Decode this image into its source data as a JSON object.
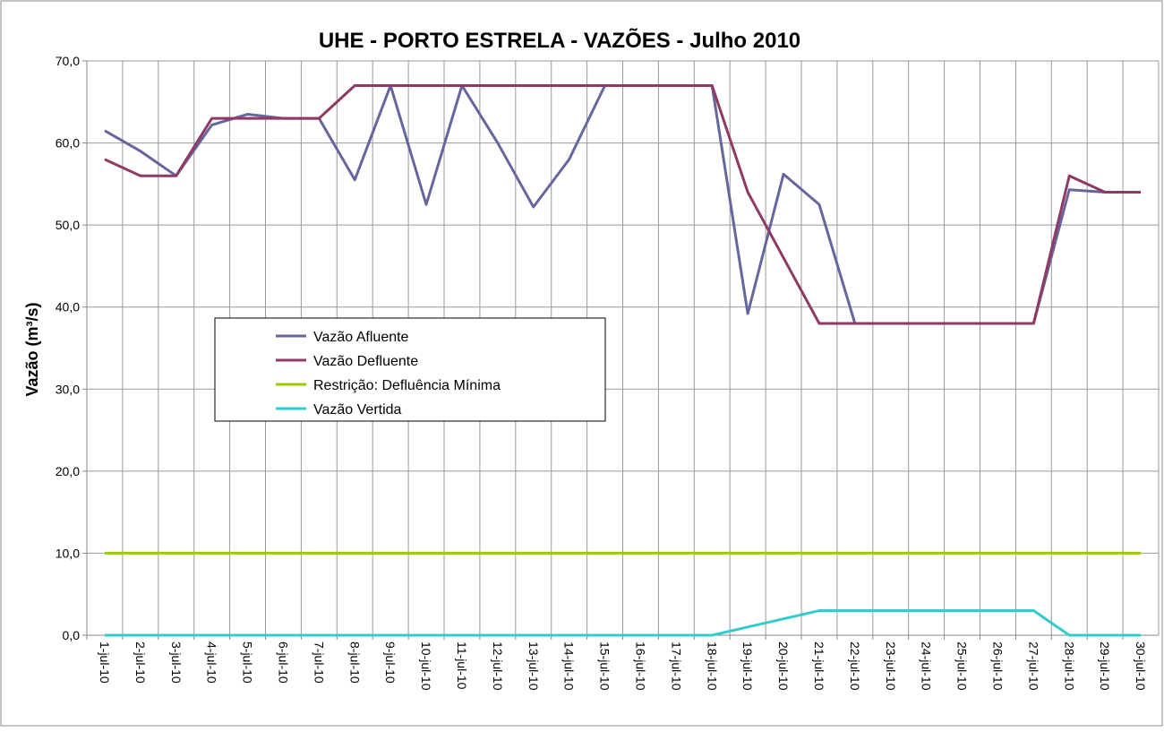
{
  "chart_data": {
    "type": "line",
    "title": "UHE - PORTO ESTRELA - VAZÕES - Julho 2010",
    "y_label": "Vazão (m³/s)",
    "categories": [
      "1-jul-10",
      "2-jul-10",
      "3-jul-10",
      "4-jul-10",
      "5-jul-10",
      "6-jul-10",
      "7-jul-10",
      "8-jul-10",
      "9-jul-10",
      "10-jul-10",
      "11-jul-10",
      "12-jul-10",
      "13-jul-10",
      "14-jul-10",
      "15-jul-10",
      "16-jul-10",
      "17-jul-10",
      "18-jul-10",
      "19-jul-10",
      "20-jul-10",
      "21-jul-10",
      "22-jul-10",
      "23-jul-10",
      "24-jul-10",
      "25-jul-10",
      "26-jul-10",
      "27-jul-10",
      "28-jul-10",
      "29-jul-10",
      "30-jul-10"
    ],
    "series": [
      {
        "name": "Vazão Afluente",
        "color": "#66669e",
        "values": [
          61.5,
          59,
          56,
          62.2,
          63.5,
          63,
          63,
          55.5,
          67,
          52.5,
          67,
          60,
          52.2,
          58,
          67,
          67,
          67,
          67,
          39.2,
          56.2,
          52.5,
          38,
          38,
          38,
          38,
          38,
          38,
          54.3,
          54,
          54
        ]
      },
      {
        "name": "Vazão Defluente",
        "color": "#8e3a64",
        "values": [
          58,
          56,
          56,
          63,
          63,
          63,
          63,
          67,
          67,
          67,
          67,
          67,
          67,
          67,
          67,
          67,
          67,
          67,
          54,
          46,
          38,
          38,
          38,
          38,
          38,
          38,
          38,
          56,
          54,
          54
        ]
      },
      {
        "name": "Restrição: Defluência Mínima",
        "color": "#99cc00",
        "values": [
          10,
          10,
          10,
          10,
          10,
          10,
          10,
          10,
          10,
          10,
          10,
          10,
          10,
          10,
          10,
          10,
          10,
          10,
          10,
          10,
          10,
          10,
          10,
          10,
          10,
          10,
          10,
          10,
          10,
          10
        ]
      },
      {
        "name": "Vazão Vertida",
        "color": "#33cccc",
        "values": [
          0,
          0,
          0,
          0,
          0,
          0,
          0,
          0,
          0,
          0,
          0,
          0,
          0,
          0,
          0,
          0,
          0,
          0,
          1,
          2,
          3,
          3,
          3,
          3,
          3,
          3,
          3,
          0,
          0,
          0
        ]
      }
    ],
    "ylim": [
      0,
      70
    ],
    "yticks": [
      {
        "value": 0,
        "label": "0,0"
      },
      {
        "value": 10,
        "label": "10,0"
      },
      {
        "value": 20,
        "label": "20,0"
      },
      {
        "value": 30,
        "label": "30,0"
      },
      {
        "value": 40,
        "label": "40,0"
      },
      {
        "value": 50,
        "label": "50,0"
      },
      {
        "value": 60,
        "label": "60,0"
      },
      {
        "value": 70,
        "label": "70,0"
      }
    ],
    "grid": true
  }
}
